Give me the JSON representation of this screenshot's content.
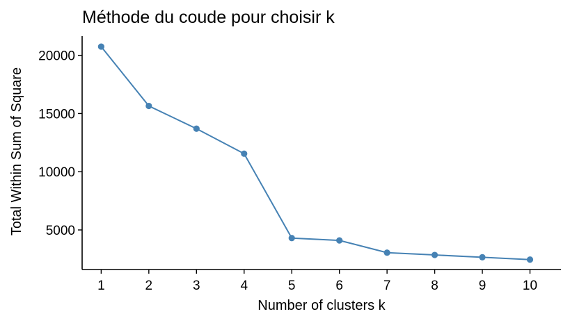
{
  "chart_data": {
    "type": "line",
    "title": "Méthode du coude pour choisir k",
    "xlabel": "Number of clusters k",
    "ylabel": "Total Within Sum of Square",
    "x": [
      1,
      2,
      3,
      4,
      5,
      6,
      7,
      8,
      9,
      10
    ],
    "series": [
      {
        "values": [
          20750,
          15650,
          13700,
          11550,
          4300,
          4100,
          3050,
          2850,
          2650,
          2450
        ],
        "color": "#4682B4"
      }
    ],
    "xticks": [
      "1",
      "2",
      "3",
      "4",
      "5",
      "6",
      "7",
      "8",
      "9",
      "10"
    ],
    "yticks": [
      5000,
      10000,
      15000,
      20000
    ],
    "ytick_labels": [
      "5000",
      "10000",
      "15000",
      "20000"
    ],
    "xlim": [
      0.6,
      10.65
    ],
    "ylim": [
      1600,
      21650
    ],
    "grid": false,
    "legend": "none"
  }
}
